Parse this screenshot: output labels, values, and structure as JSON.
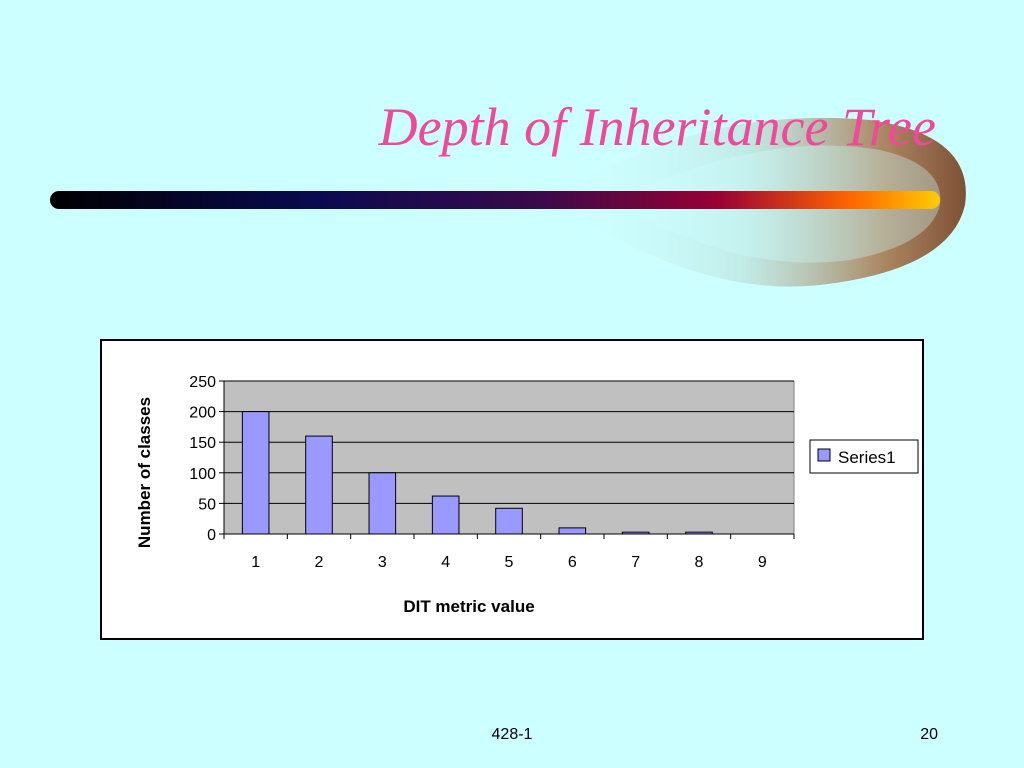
{
  "slide": {
    "title": "Depth of Inheritance Tree",
    "footer_center": "428-1",
    "page_number": "20"
  },
  "colors": {
    "background": "#ccffff",
    "title": "#f0489a",
    "plot_area": "#c0c0c0",
    "bar_fill": "#9999ff"
  },
  "chart_data": {
    "type": "bar",
    "categories": [
      "1",
      "2",
      "3",
      "4",
      "5",
      "6",
      "7",
      "8",
      "9"
    ],
    "series": [
      {
        "name": "Series1",
        "values": [
          200,
          160,
          100,
          62,
          42,
          10,
          3,
          3,
          0
        ]
      }
    ],
    "title": "",
    "xlabel": "DIT metric value",
    "ylabel": "Number of classes",
    "ylim": [
      0,
      250
    ],
    "yticks": [
      0,
      50,
      100,
      150,
      200,
      250
    ],
    "grid": true,
    "legend": "right"
  }
}
